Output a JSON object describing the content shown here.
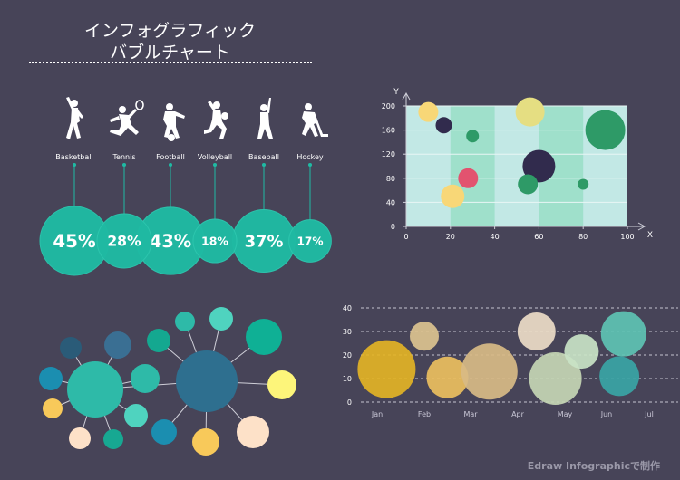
{
  "title": {
    "line1": "インフォグラフィック",
    "line2": "バブルチャート"
  },
  "watermark": "Edraw Infographicで制作",
  "colors": {
    "background": "#474458",
    "teal": "#1fbaa3",
    "grid": "#b7e4df",
    "dark_green": "#2e9a67",
    "navy": "#312b4d",
    "pink": "#e2536f",
    "yellow": "#f8d777"
  },
  "chart_data": [
    {
      "type": "bubble",
      "categories": [
        "Basketball",
        "Tennis",
        "Football",
        "Volleyball",
        "Baseball",
        "Hockey"
      ],
      "values": [
        45,
        28,
        43,
        18,
        37,
        17
      ],
      "labels": [
        "45%",
        "28%",
        "43%",
        "18%",
        "37%",
        "17%"
      ],
      "icons": [
        "basketball-player-icon",
        "tennis-player-icon",
        "football-player-icon",
        "volleyball-player-icon",
        "baseball-player-icon",
        "hockey-player-icon"
      ]
    },
    {
      "type": "scatter",
      "xlabel": "X",
      "ylabel": "Y",
      "xlim": [
        0,
        100
      ],
      "ylim": [
        0,
        200
      ],
      "xticks": [
        0,
        20,
        40,
        60,
        80,
        100
      ],
      "yticks": [
        0,
        40,
        80,
        120,
        160,
        200
      ],
      "points": [
        {
          "x": 10,
          "y": 190,
          "size": 11,
          "color": "#f8d777"
        },
        {
          "x": 17,
          "y": 168,
          "size": 9,
          "color": "#312b4d"
        },
        {
          "x": 30,
          "y": 150,
          "size": 7,
          "color": "#2e9a67"
        },
        {
          "x": 56,
          "y": 190,
          "size": 16,
          "color": "#e5de82"
        },
        {
          "x": 90,
          "y": 160,
          "size": 22,
          "color": "#2e9a67"
        },
        {
          "x": 60,
          "y": 100,
          "size": 18,
          "color": "#312b4d"
        },
        {
          "x": 28,
          "y": 80,
          "size": 11,
          "color": "#e2536f"
        },
        {
          "x": 55,
          "y": 70,
          "size": 11,
          "color": "#2e9a67"
        },
        {
          "x": 80,
          "y": 70,
          "size": 6,
          "color": "#2e9a67"
        },
        {
          "x": 21,
          "y": 50,
          "size": 13,
          "color": "#f8d777"
        }
      ]
    },
    {
      "type": "network",
      "hubs": [
        {
          "size": 31,
          "color": "#2ebaa8"
        },
        {
          "size": 34,
          "color": "#2e6f8f"
        }
      ],
      "links": [
        [
          0,
          1
        ]
      ],
      "satellites": [
        {
          "hub": 0,
          "size": 12,
          "color": "#2a5b78"
        },
        {
          "hub": 0,
          "size": 13,
          "color": "#1b8eb0"
        },
        {
          "hub": 0,
          "size": 11,
          "color": "#f8c95a"
        },
        {
          "hub": 0,
          "size": 12,
          "color": "#fde1c8"
        },
        {
          "hub": 0,
          "size": 11,
          "color": "#17a892"
        },
        {
          "hub": 0,
          "size": 13,
          "color": "#4fd3bf"
        },
        {
          "hub": 0,
          "size": 15,
          "color": "#3a6f93"
        },
        {
          "hub": 0,
          "size": 16,
          "color": "#2ebaa8"
        },
        {
          "hub": 1,
          "size": 13,
          "color": "#14a890"
        },
        {
          "hub": 1,
          "size": 11,
          "color": "#2ebaa8"
        },
        {
          "hub": 1,
          "size": 13,
          "color": "#4fd3bf"
        },
        {
          "hub": 1,
          "size": 20,
          "color": "#0fb095"
        },
        {
          "hub": 1,
          "size": 16,
          "color": "#fdf57a"
        },
        {
          "hub": 1,
          "size": 18,
          "color": "#fde1c8"
        },
        {
          "hub": 1,
          "size": 15,
          "color": "#f8c95a"
        },
        {
          "hub": 1,
          "size": 14,
          "color": "#1b8eb0"
        }
      ]
    },
    {
      "type": "scatter",
      "categories": [
        "Jan",
        "Feb",
        "Mar",
        "Apr",
        "May",
        "Jun",
        "Jul"
      ],
      "ylim": [
        0,
        40
      ],
      "yticks": [
        0,
        10,
        20,
        30,
        40
      ],
      "points": [
        {
          "x": 0.2,
          "y": 14,
          "size": 32,
          "color": "#e3b325"
        },
        {
          "x": 1.0,
          "y": 28,
          "size": 16,
          "color": "#dcc38f"
        },
        {
          "x": 1.5,
          "y": 10.5,
          "size": 23,
          "color": "#ebbf5e"
        },
        {
          "x": 2.4,
          "y": 13,
          "size": 31,
          "color": "#d8bb85"
        },
        {
          "x": 3.4,
          "y": 30,
          "size": 21,
          "color": "#eddcc7"
        },
        {
          "x": 3.8,
          "y": 10,
          "size": 29,
          "color": "#c5d6b4"
        },
        {
          "x": 4.4,
          "y": 21.5,
          "size": 19,
          "color": "#c9e3c5"
        },
        {
          "x": 5.4,
          "y": 29,
          "size": 25,
          "color": "#5ec3b3"
        },
        {
          "x": 5.3,
          "y": 11,
          "size": 22,
          "color": "#3aa5a5"
        }
      ]
    }
  ]
}
